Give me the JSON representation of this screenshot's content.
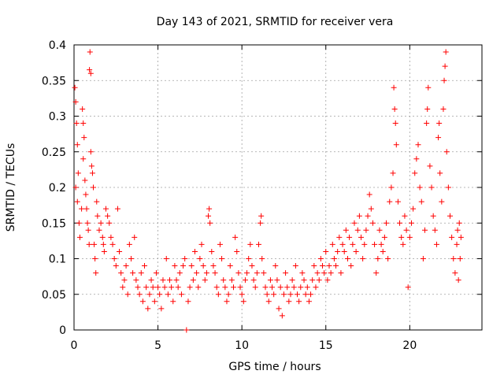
{
  "chart_data": {
    "type": "scatter",
    "title": "Day 143 of 2021, SRMTID for receiver vera",
    "xlabel": "GPS time / hours",
    "ylabel": "SRMTID / TECUs",
    "xlim": [
      0,
      24.3
    ],
    "ylim": [
      0,
      0.4
    ],
    "x_ticks": [
      0,
      5,
      10,
      15,
      20
    ],
    "x_tick_labels": [
      "0",
      "5",
      "10",
      "15",
      "20"
    ],
    "y_ticks": [
      0,
      0.05,
      0.1,
      0.15,
      0.2,
      0.25,
      0.3,
      0.35,
      0.4
    ],
    "y_tick_labels": [
      "0",
      "0.05",
      "0.1",
      "0.15",
      "0.2",
      "0.25",
      "0.3",
      "0.35",
      "0.4"
    ],
    "grid": true,
    "marker": "plus",
    "color": "#ff0000",
    "series": [
      {
        "name": "SRMTID",
        "points": [
          [
            0.05,
            0.34
          ],
          [
            0.1,
            0.32
          ],
          [
            0.15,
            0.29
          ],
          [
            0.2,
            0.26
          ],
          [
            0.25,
            0.22
          ],
          [
            0.1,
            0.2
          ],
          [
            0.2,
            0.18
          ],
          [
            0.3,
            0.15
          ],
          [
            0.35,
            0.13
          ],
          [
            0.45,
            0.17
          ],
          [
            0.5,
            0.31
          ],
          [
            0.55,
            0.29
          ],
          [
            0.6,
            0.27
          ],
          [
            0.55,
            0.24
          ],
          [
            0.65,
            0.21
          ],
          [
            0.7,
            0.19
          ],
          [
            0.75,
            0.17
          ],
          [
            0.8,
            0.15
          ],
          [
            0.85,
            0.14
          ],
          [
            0.9,
            0.12
          ],
          [
            0.95,
            0.39
          ],
          [
            0.92,
            0.365
          ],
          [
            1.0,
            0.36
          ],
          [
            1.0,
            0.25
          ],
          [
            1.05,
            0.23
          ],
          [
            1.1,
            0.22
          ],
          [
            1.15,
            0.2
          ],
          [
            1.2,
            0.12
          ],
          [
            1.25,
            0.1
          ],
          [
            1.3,
            0.08
          ],
          [
            1.35,
            0.18
          ],
          [
            1.4,
            0.16
          ],
          [
            1.5,
            0.14
          ],
          [
            1.6,
            0.15
          ],
          [
            1.7,
            0.13
          ],
          [
            1.75,
            0.12
          ],
          [
            1.8,
            0.11
          ],
          [
            1.9,
            0.17
          ],
          [
            2.0,
            0.16
          ],
          [
            2.1,
            0.15
          ],
          [
            2.2,
            0.13
          ],
          [
            2.3,
            0.12
          ],
          [
            2.4,
            0.1
          ],
          [
            2.5,
            0.09
          ],
          [
            2.6,
            0.17
          ],
          [
            2.7,
            0.11
          ],
          [
            2.8,
            0.08
          ],
          [
            2.9,
            0.06
          ],
          [
            3.0,
            0.07
          ],
          [
            3.1,
            0.09
          ],
          [
            3.2,
            0.05
          ],
          [
            3.3,
            0.12
          ],
          [
            3.4,
            0.1
          ],
          [
            3.5,
            0.08
          ],
          [
            3.6,
            0.13
          ],
          [
            3.7,
            0.07
          ],
          [
            3.8,
            0.06
          ],
          [
            3.9,
            0.05
          ],
          [
            4.0,
            0.08
          ],
          [
            4.1,
            0.04
          ],
          [
            4.2,
            0.09
          ],
          [
            4.3,
            0.06
          ],
          [
            4.4,
            0.03
          ],
          [
            4.5,
            0.05
          ],
          [
            4.6,
            0.07
          ],
          [
            4.7,
            0.06
          ],
          [
            4.8,
            0.04
          ],
          [
            4.9,
            0.08
          ],
          [
            5.0,
            0.06
          ],
          [
            5.1,
            0.05
          ],
          [
            5.2,
            0.03
          ],
          [
            5.3,
            0.07
          ],
          [
            5.4,
            0.06
          ],
          [
            5.5,
            0.1
          ],
          [
            5.6,
            0.05
          ],
          [
            5.7,
            0.07
          ],
          [
            5.8,
            0.06
          ],
          [
            5.9,
            0.04
          ],
          [
            6.0,
            0.09
          ],
          [
            6.1,
            0.07
          ],
          [
            6.2,
            0.06
          ],
          [
            6.3,
            0.08
          ],
          [
            6.4,
            0.05
          ],
          [
            6.5,
            0.09
          ],
          [
            6.6,
            0.1
          ],
          [
            6.7,
            0.0
          ],
          [
            6.8,
            0.04
          ],
          [
            6.9,
            0.06
          ],
          [
            7.0,
            0.09
          ],
          [
            7.1,
            0.07
          ],
          [
            7.2,
            0.11
          ],
          [
            7.3,
            0.08
          ],
          [
            7.4,
            0.06
          ],
          [
            7.5,
            0.1
          ],
          [
            7.6,
            0.12
          ],
          [
            7.7,
            0.09
          ],
          [
            7.8,
            0.07
          ],
          [
            7.9,
            0.08
          ],
          [
            8.0,
            0.16
          ],
          [
            8.05,
            0.17
          ],
          [
            8.1,
            0.15
          ],
          [
            8.2,
            0.11
          ],
          [
            8.3,
            0.09
          ],
          [
            8.4,
            0.08
          ],
          [
            8.5,
            0.06
          ],
          [
            8.6,
            0.05
          ],
          [
            8.7,
            0.12
          ],
          [
            8.8,
            0.1
          ],
          [
            8.9,
            0.07
          ],
          [
            9.0,
            0.06
          ],
          [
            9.1,
            0.04
          ],
          [
            9.2,
            0.05
          ],
          [
            9.3,
            0.09
          ],
          [
            9.4,
            0.07
          ],
          [
            9.5,
            0.06
          ],
          [
            9.6,
            0.13
          ],
          [
            9.7,
            0.11
          ],
          [
            9.8,
            0.08
          ],
          [
            9.9,
            0.06
          ],
          [
            10.0,
            0.05
          ],
          [
            10.1,
            0.04
          ],
          [
            10.2,
            0.07
          ],
          [
            10.3,
            0.08
          ],
          [
            10.4,
            0.1
          ],
          [
            10.5,
            0.12
          ],
          [
            10.6,
            0.09
          ],
          [
            10.7,
            0.07
          ],
          [
            10.8,
            0.06
          ],
          [
            10.9,
            0.08
          ],
          [
            11.0,
            0.12
          ],
          [
            11.1,
            0.15
          ],
          [
            11.15,
            0.16
          ],
          [
            11.2,
            0.1
          ],
          [
            11.3,
            0.08
          ],
          [
            11.4,
            0.06
          ],
          [
            11.5,
            0.05
          ],
          [
            11.6,
            0.04
          ],
          [
            11.7,
            0.07
          ],
          [
            11.8,
            0.06
          ],
          [
            11.9,
            0.05
          ],
          [
            12.0,
            0.09
          ],
          [
            12.1,
            0.07
          ],
          [
            12.2,
            0.03
          ],
          [
            12.3,
            0.06
          ],
          [
            12.4,
            0.02
          ],
          [
            12.5,
            0.05
          ],
          [
            12.6,
            0.08
          ],
          [
            12.7,
            0.06
          ],
          [
            12.8,
            0.04
          ],
          [
            12.9,
            0.05
          ],
          [
            13.0,
            0.07
          ],
          [
            13.1,
            0.06
          ],
          [
            13.2,
            0.09
          ],
          [
            13.3,
            0.05
          ],
          [
            13.4,
            0.04
          ],
          [
            13.5,
            0.06
          ],
          [
            13.6,
            0.08
          ],
          [
            13.7,
            0.07
          ],
          [
            13.8,
            0.05
          ],
          [
            13.9,
            0.06
          ],
          [
            14.0,
            0.04
          ],
          [
            14.1,
            0.05
          ],
          [
            14.2,
            0.07
          ],
          [
            14.3,
            0.09
          ],
          [
            14.4,
            0.06
          ],
          [
            14.5,
            0.08
          ],
          [
            14.6,
            0.07
          ],
          [
            14.7,
            0.1
          ],
          [
            14.8,
            0.09
          ],
          [
            14.9,
            0.08
          ],
          [
            15.0,
            0.11
          ],
          [
            15.1,
            0.07
          ],
          [
            15.2,
            0.09
          ],
          [
            15.3,
            0.08
          ],
          [
            15.4,
            0.12
          ],
          [
            15.5,
            0.1
          ],
          [
            15.6,
            0.09
          ],
          [
            15.7,
            0.11
          ],
          [
            15.8,
            0.13
          ],
          [
            15.9,
            0.08
          ],
          [
            16.0,
            0.12
          ],
          [
            16.1,
            0.11
          ],
          [
            16.2,
            0.14
          ],
          [
            16.3,
            0.1
          ],
          [
            16.4,
            0.13
          ],
          [
            16.5,
            0.09
          ],
          [
            16.6,
            0.12
          ],
          [
            16.7,
            0.15
          ],
          [
            16.8,
            0.11
          ],
          [
            16.9,
            0.14
          ],
          [
            17.0,
            0.16
          ],
          [
            17.1,
            0.13
          ],
          [
            17.2,
            0.1
          ],
          [
            17.3,
            0.12
          ],
          [
            17.4,
            0.14
          ],
          [
            17.5,
            0.16
          ],
          [
            17.6,
            0.19
          ],
          [
            17.7,
            0.17
          ],
          [
            17.8,
            0.15
          ],
          [
            17.9,
            0.12
          ],
          [
            18.0,
            0.08
          ],
          [
            18.1,
            0.1
          ],
          [
            18.2,
            0.14
          ],
          [
            18.3,
            0.12
          ],
          [
            18.4,
            0.11
          ],
          [
            18.5,
            0.13
          ],
          [
            18.6,
            0.15
          ],
          [
            18.7,
            0.1
          ],
          [
            18.8,
            0.18
          ],
          [
            18.9,
            0.2
          ],
          [
            19.0,
            0.22
          ],
          [
            19.05,
            0.34
          ],
          [
            19.1,
            0.31
          ],
          [
            19.15,
            0.29
          ],
          [
            19.2,
            0.26
          ],
          [
            19.3,
            0.18
          ],
          [
            19.4,
            0.15
          ],
          [
            19.5,
            0.13
          ],
          [
            19.6,
            0.12
          ],
          [
            19.7,
            0.16
          ],
          [
            19.8,
            0.14
          ],
          [
            19.9,
            0.06
          ],
          [
            20.0,
            0.13
          ],
          [
            20.1,
            0.15
          ],
          [
            20.2,
            0.17
          ],
          [
            20.3,
            0.22
          ],
          [
            20.4,
            0.24
          ],
          [
            20.5,
            0.26
          ],
          [
            20.6,
            0.2
          ],
          [
            20.7,
            0.18
          ],
          [
            20.8,
            0.1
          ],
          [
            20.9,
            0.14
          ],
          [
            21.0,
            0.29
          ],
          [
            21.05,
            0.31
          ],
          [
            21.1,
            0.34
          ],
          [
            21.2,
            0.23
          ],
          [
            21.3,
            0.2
          ],
          [
            21.4,
            0.16
          ],
          [
            21.5,
            0.14
          ],
          [
            21.6,
            0.12
          ],
          [
            21.7,
            0.27
          ],
          [
            21.75,
            0.29
          ],
          [
            21.8,
            0.22
          ],
          [
            21.9,
            0.18
          ],
          [
            22.0,
            0.31
          ],
          [
            22.05,
            0.35
          ],
          [
            22.1,
            0.37
          ],
          [
            22.15,
            0.39
          ],
          [
            22.2,
            0.25
          ],
          [
            22.3,
            0.2
          ],
          [
            22.4,
            0.16
          ],
          [
            22.5,
            0.13
          ],
          [
            22.6,
            0.1
          ],
          [
            22.7,
            0.08
          ],
          [
            22.8,
            0.12
          ],
          [
            22.9,
            0.07
          ],
          [
            23.0,
            0.1
          ],
          [
            23.05,
            0.13
          ],
          [
            22.85,
            0.14
          ],
          [
            22.95,
            0.15
          ]
        ]
      }
    ]
  }
}
